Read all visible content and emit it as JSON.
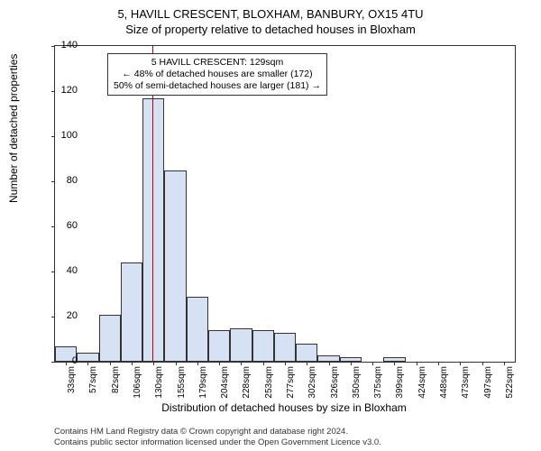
{
  "title": "5, HAVILL CRESCENT, BLOXHAM, BANBURY, OX15 4TU",
  "subtitle": "Size of property relative to detached houses in Bloxham",
  "chart": {
    "type": "histogram",
    "ylabel": "Number of detached properties",
    "xlabel": "Distribution of detached houses by size in Bloxham",
    "ylim": [
      0,
      140
    ],
    "yticks": [
      0,
      20,
      40,
      60,
      80,
      100,
      120,
      140
    ],
    "bin_width": 24.5,
    "bin_starts": [
      20.5,
      45,
      69.5,
      94,
      118.5,
      143,
      167.5,
      192,
      216.5,
      241,
      265.5,
      290,
      314.5,
      339,
      363.5,
      388,
      412.5,
      437,
      461.5,
      486,
      510.5
    ],
    "xticks_labels": [
      "33sqm",
      "57sqm",
      "82sqm",
      "106sqm",
      "130sqm",
      "155sqm",
      "179sqm",
      "204sqm",
      "228sqm",
      "253sqm",
      "277sqm",
      "302sqm",
      "326sqm",
      "350sqm",
      "375sqm",
      "399sqm",
      "424sqm",
      "448sqm",
      "473sqm",
      "497sqm",
      "522sqm"
    ],
    "values": [
      7,
      4,
      21,
      44,
      117,
      85,
      29,
      14,
      15,
      14,
      13,
      8,
      3,
      2,
      0,
      2,
      0,
      0,
      0,
      0,
      0
    ],
    "bar_fill": "#d6e2f3",
    "bar_stroke": "#333333",
    "background_color": "#ffffff",
    "marker_line": {
      "x": 129,
      "color": "#c00000",
      "width": 1.5
    },
    "annotation": {
      "lines": [
        "5 HAVILL CRESCENT: 129sqm",
        "← 48% of detached houses are smaller (172)",
        "50% of semi-detached houses are larger (181) →"
      ]
    }
  },
  "footer": {
    "line1": "Contains HM Land Registry data © Crown copyright and database right 2024.",
    "line2": "Contains public sector information licensed under the Open Government Licence v3.0."
  }
}
